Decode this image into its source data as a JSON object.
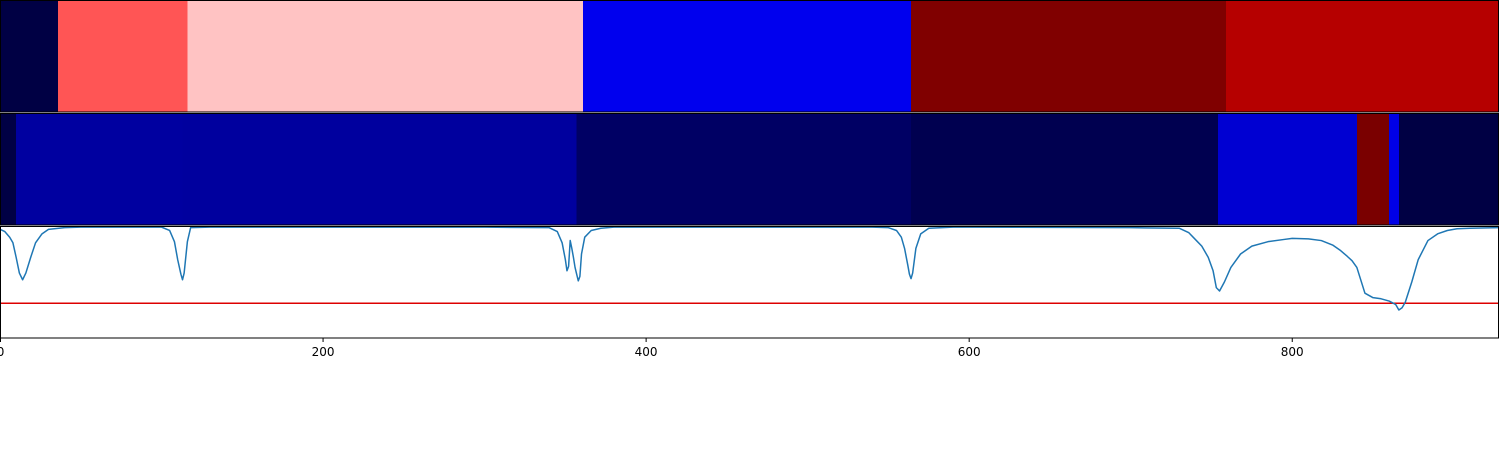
{
  "chart_data": [
    {
      "type": "heatmap",
      "panel": "top",
      "x_unit": "index",
      "segments": [
        {
          "start": 0,
          "end": 36,
          "color": "#000044"
        },
        {
          "start": 36,
          "end": 116,
          "color": "#ff5555"
        },
        {
          "start": 116,
          "end": 361,
          "color": "#ffc3c3"
        },
        {
          "start": 361,
          "end": 564,
          "color": "#0000ee"
        },
        {
          "start": 564,
          "end": 759,
          "color": "#800000"
        },
        {
          "start": 759,
          "end": 928,
          "color": "#b60000"
        }
      ]
    },
    {
      "type": "heatmap",
      "panel": "middle",
      "x_unit": "index",
      "segments": [
        {
          "start": 0,
          "end": 10,
          "color": "#000044"
        },
        {
          "start": 10,
          "end": 113,
          "color": "#0000a0"
        },
        {
          "start": 113,
          "end": 357,
          "color": "#00009e"
        },
        {
          "start": 357,
          "end": 564,
          "color": "#000064"
        },
        {
          "start": 564,
          "end": 754,
          "color": "#000050"
        },
        {
          "start": 754,
          "end": 840,
          "color": "#0000d2"
        },
        {
          "start": 840,
          "end": 860,
          "color": "#7a0000"
        },
        {
          "start": 860,
          "end": 866,
          "color": "#0000e6"
        },
        {
          "start": 866,
          "end": 928,
          "color": "#000044"
        }
      ]
    },
    {
      "type": "line",
      "panel": "bottom",
      "xlim": [
        0,
        928
      ],
      "ylim": [
        0,
        1
      ],
      "xticks": [
        0,
        200,
        400,
        600,
        800
      ],
      "threshold": {
        "value": 0.31,
        "color": "#dd0000"
      },
      "series": [
        {
          "color": "#1f77b4",
          "x": [
            0,
            3,
            6,
            8,
            10,
            12,
            14,
            16,
            19,
            22,
            26,
            30,
            40,
            50,
            100,
            105,
            108,
            110,
            112,
            113,
            114,
            116,
            118,
            130,
            200,
            300,
            340,
            345,
            348,
            350,
            351,
            352,
            353,
            354,
            355,
            356,
            357,
            358,
            359,
            360,
            362,
            366,
            372,
            380,
            400,
            500,
            540,
            550,
            555,
            558,
            560,
            562,
            563,
            564,
            565,
            567,
            570,
            575,
            590,
            600,
            700,
            730,
            736,
            740,
            744,
            748,
            751,
            753,
            755,
            758,
            762,
            768,
            775,
            785,
            795,
            800,
            810,
            818,
            825,
            830,
            834,
            837,
            840,
            845,
            850,
            855,
            860,
            864,
            866,
            868,
            870,
            874,
            878,
            884,
            890,
            896,
            902,
            910,
            928
          ],
          "y": [
            0.97,
            0.95,
            0.9,
            0.85,
            0.72,
            0.58,
            0.52,
            0.58,
            0.72,
            0.85,
            0.93,
            0.97,
            0.985,
            0.99,
            0.99,
            0.96,
            0.86,
            0.7,
            0.57,
            0.52,
            0.58,
            0.86,
            0.985,
            0.99,
            0.99,
            0.99,
            0.985,
            0.95,
            0.85,
            0.7,
            0.6,
            0.64,
            0.87,
            0.8,
            0.72,
            0.63,
            0.57,
            0.51,
            0.55,
            0.75,
            0.9,
            0.96,
            0.98,
            0.99,
            0.99,
            0.99,
            0.99,
            0.985,
            0.96,
            0.9,
            0.8,
            0.65,
            0.57,
            0.53,
            0.58,
            0.8,
            0.93,
            0.98,
            0.99,
            0.99,
            0.985,
            0.98,
            0.94,
            0.88,
            0.82,
            0.72,
            0.6,
            0.45,
            0.42,
            0.5,
            0.63,
            0.75,
            0.82,
            0.86,
            0.88,
            0.89,
            0.885,
            0.87,
            0.83,
            0.78,
            0.73,
            0.69,
            0.63,
            0.4,
            0.36,
            0.35,
            0.33,
            0.3,
            0.25,
            0.27,
            0.32,
            0.5,
            0.7,
            0.87,
            0.93,
            0.96,
            0.975,
            0.98,
            0.985
          ]
        }
      ]
    }
  ]
}
